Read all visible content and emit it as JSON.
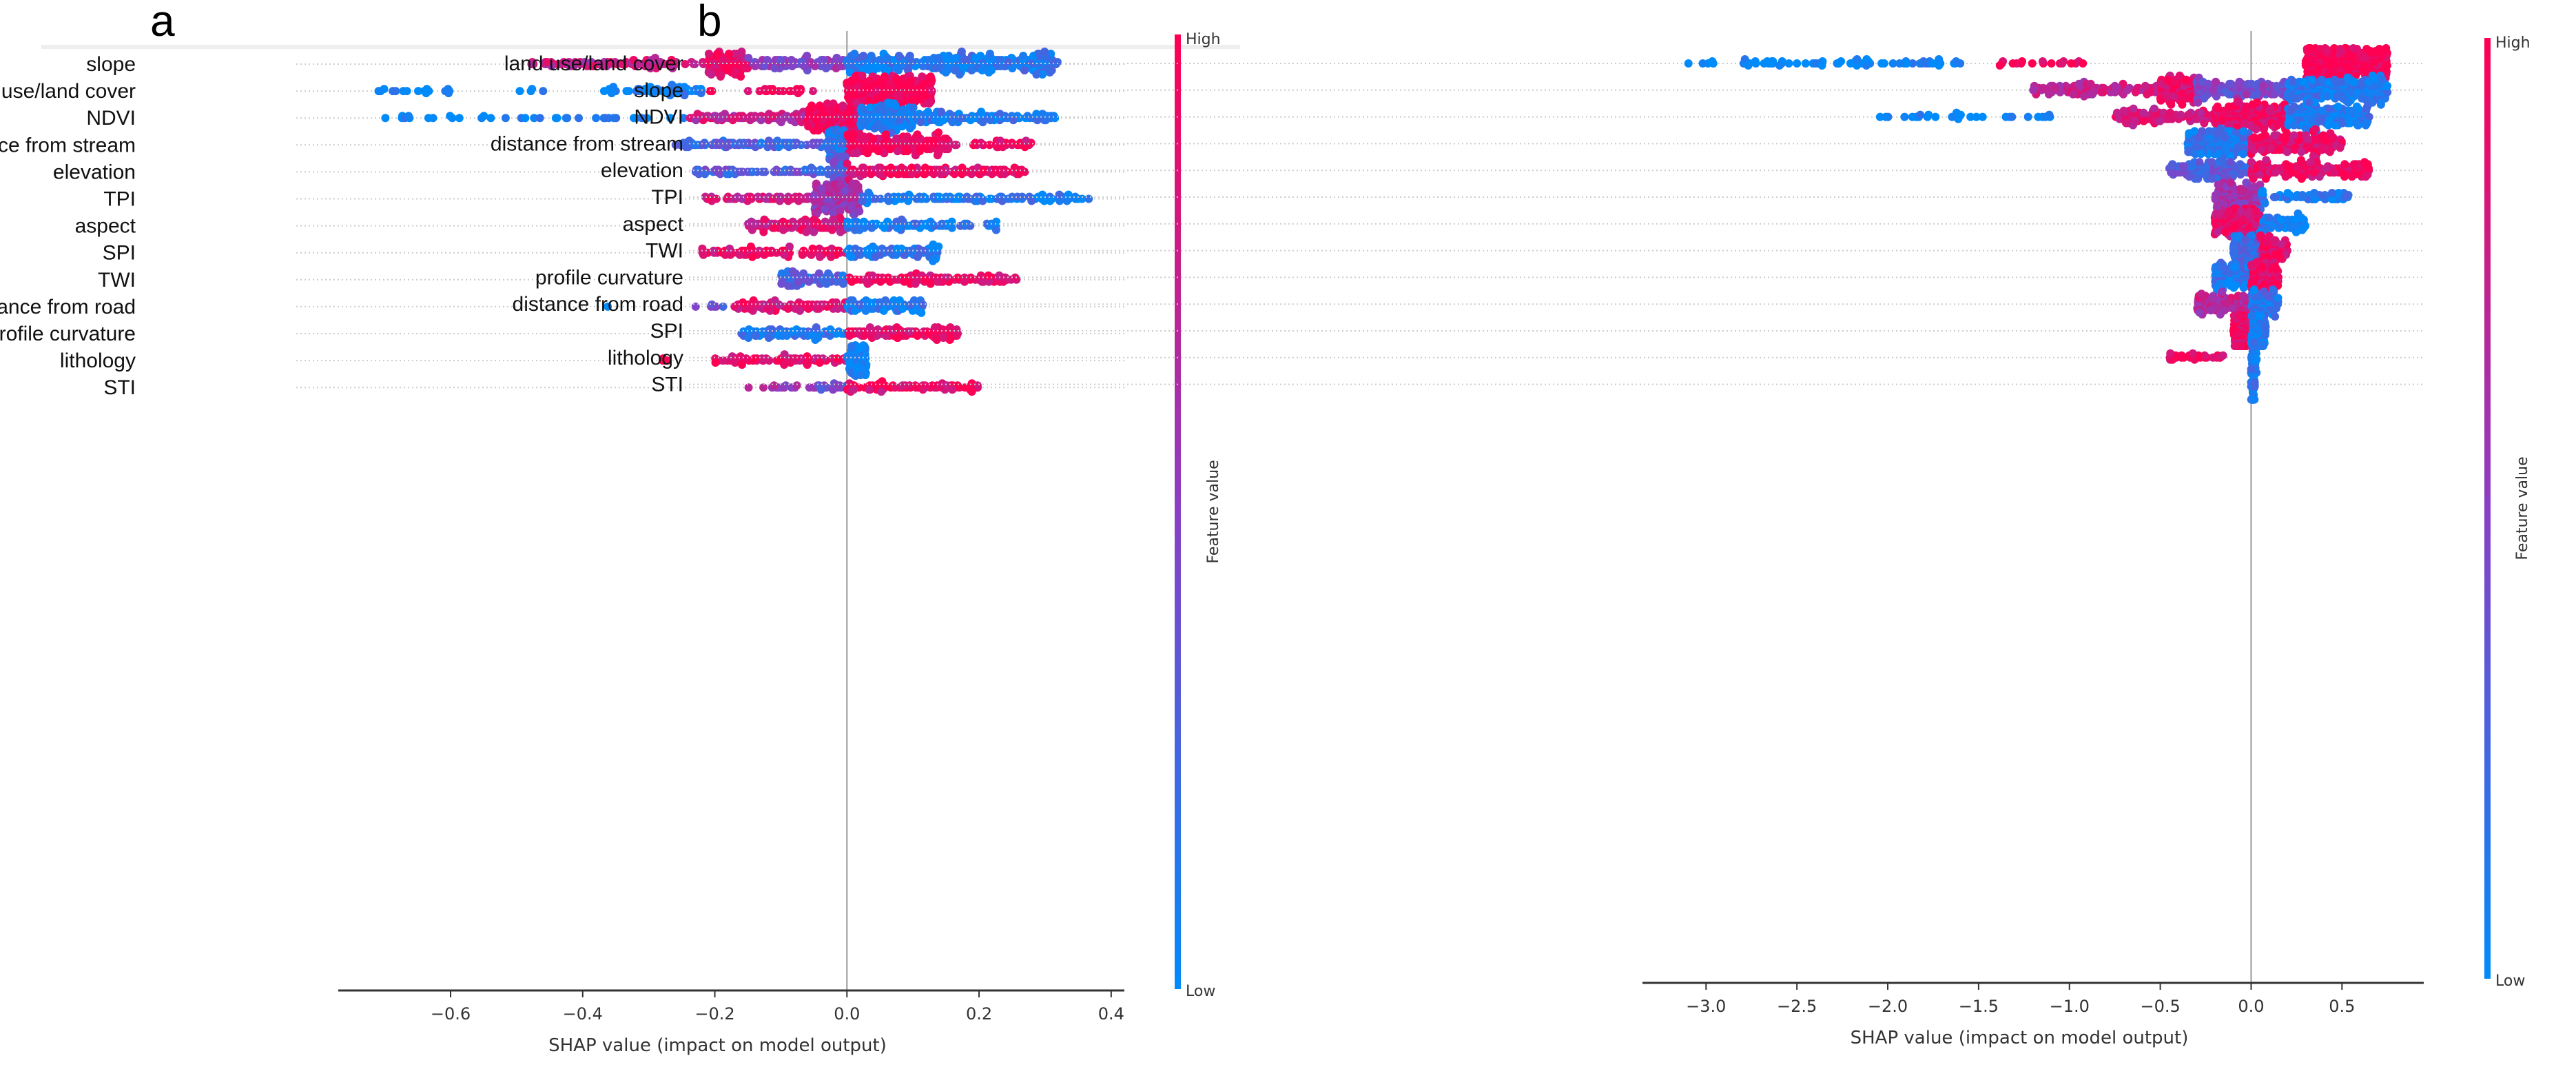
{
  "chart_data": [
    {
      "type": "scatter",
      "subtype": "shap-beeswarm",
      "panel_label": "a",
      "xlabel": "SHAP value (impact on model output)",
      "xlim": [
        -0.77,
        0.42
      ],
      "xticks": [
        -0.6,
        -0.4,
        -0.2,
        0.0,
        0.2,
        0.4
      ],
      "xtick_labels": [
        "−0.6",
        "−0.4",
        "−0.2",
        "0.0",
        "0.2",
        "0.4"
      ],
      "colorbar": {
        "label": "Feature value",
        "high": "High",
        "low": "Low"
      },
      "segments_format": "[shap_from, shap_to, feature_value_0to1, point_count]",
      "features": [
        {
          "name": "slope",
          "segments": [
            [
              -0.48,
              -0.21,
              0.75,
              90
            ],
            [
              -0.21,
              -0.15,
              0.92,
              110
            ],
            [
              -0.15,
              0.0,
              0.5,
              90
            ],
            [
              0.0,
              0.32,
              0.12,
              360
            ]
          ]
        },
        {
          "name": "land use/land cover",
          "segments": [
            [
              -0.72,
              -0.6,
              0.0,
              16
            ],
            [
              -0.51,
              -0.43,
              0.0,
              4
            ],
            [
              -0.37,
              -0.22,
              0.05,
              60
            ],
            [
              -0.21,
              -0.2,
              1.0,
              2
            ],
            [
              -0.15,
              -0.05,
              1.0,
              18
            ],
            [
              0.0,
              0.13,
              1.0,
              300
            ]
          ]
        },
        {
          "name": "NDVI",
          "segments": [
            [
              -0.7,
              -0.24,
              0.0,
              36
            ],
            [
              -0.24,
              -0.06,
              0.75,
              80
            ],
            [
              -0.06,
              0.02,
              0.95,
              170
            ],
            [
              0.02,
              0.1,
              0.08,
              160
            ],
            [
              0.1,
              0.32,
              0.1,
              110
            ]
          ]
        },
        {
          "name": "distance from stream",
          "segments": [
            [
              -0.26,
              -0.03,
              0.25,
              80
            ],
            [
              -0.03,
              0.0,
              0.15,
              80
            ],
            [
              0.0,
              0.15,
              0.95,
              190
            ],
            [
              0.15,
              0.28,
              0.9,
              40
            ]
          ]
        },
        {
          "name": "elevation",
          "segments": [
            [
              -0.23,
              -0.02,
              0.3,
              60
            ],
            [
              -0.02,
              0.0,
              0.35,
              70
            ],
            [
              0.0,
              0.27,
              0.9,
              140
            ]
          ]
        },
        {
          "name": "TPI",
          "segments": [
            [
              -0.22,
              -0.05,
              0.8,
              50
            ],
            [
              -0.05,
              0.02,
              0.6,
              170
            ],
            [
              0.02,
              0.37,
              0.1,
              110
            ]
          ]
        },
        {
          "name": "aspect",
          "segments": [
            [
              -0.15,
              0.0,
              0.85,
              110
            ],
            [
              0.0,
              0.23,
              0.1,
              90
            ]
          ]
        },
        {
          "name": "SPI",
          "segments": [
            [
              -0.22,
              0.0,
              0.88,
              90
            ],
            [
              0.0,
              0.14,
              0.12,
              100
            ]
          ]
        },
        {
          "name": "TWI",
          "segments": [
            [
              -0.1,
              0.0,
              0.25,
              80
            ],
            [
              0.0,
              0.26,
              0.92,
              110
            ]
          ]
        },
        {
          "name": "distance from road",
          "segments": [
            [
              -0.37,
              -0.36,
              0.0,
              1
            ],
            [
              -0.25,
              -0.18,
              0.4,
              6
            ],
            [
              -0.17,
              0.0,
              0.85,
              90
            ],
            [
              0.0,
              0.12,
              0.1,
              90
            ]
          ]
        },
        {
          "name": "profile curvature",
          "segments": [
            [
              -0.16,
              0.0,
              0.15,
              80
            ],
            [
              0.0,
              0.17,
              0.92,
              110
            ]
          ]
        },
        {
          "name": "lithology",
          "segments": [
            [
              -0.28,
              -0.26,
              1.0,
              4
            ],
            [
              -0.2,
              0.0,
              0.9,
              70
            ],
            [
              0.0,
              0.03,
              0.05,
              80
            ]
          ]
        },
        {
          "name": "STI",
          "segments": [
            [
              -0.15,
              -0.05,
              0.55,
              14
            ],
            [
              -0.05,
              0.0,
              0.4,
              20
            ],
            [
              0.0,
              0.2,
              0.9,
              80
            ]
          ]
        }
      ]
    },
    {
      "type": "scatter",
      "subtype": "shap-beeswarm",
      "panel_label": "b",
      "xlabel": "SHAP value (impact on model output)",
      "xlim": [
        -3.35,
        0.95
      ],
      "xticks": [
        -3.0,
        -2.5,
        -2.0,
        -1.5,
        -1.0,
        -0.5,
        0.0,
        0.5
      ],
      "xtick_labels": [
        "−3.0",
        "−2.5",
        "−2.0",
        "−1.5",
        "−1.0",
        "−0.5",
        "0.0",
        "0.5"
      ],
      "colorbar": {
        "label": "Feature value",
        "high": "High",
        "low": "Low"
      },
      "segments_format": "[shap_from, shap_to, feature_value_0to1, point_count]",
      "features": [
        {
          "name": "land use/land cover",
          "segments": [
            [
              -3.1,
              -1.6,
              0.0,
              70
            ],
            [
              -1.4,
              -0.9,
              1.0,
              18
            ],
            [
              0.3,
              0.75,
              1.0,
              330
            ]
          ]
        },
        {
          "name": "slope",
          "segments": [
            [
              -1.2,
              -0.5,
              0.75,
              120
            ],
            [
              -0.5,
              -0.3,
              0.9,
              110
            ],
            [
              -0.3,
              0.2,
              0.45,
              150
            ],
            [
              0.2,
              0.75,
              0.1,
              260
            ]
          ]
        },
        {
          "name": "NDVI",
          "segments": [
            [
              -2.05,
              -1.1,
              0.0,
              30
            ],
            [
              -0.75,
              -0.2,
              0.85,
              120
            ],
            [
              -0.2,
              0.2,
              0.92,
              220
            ],
            [
              0.2,
              0.65,
              0.1,
              200
            ]
          ]
        },
        {
          "name": "distance from stream",
          "segments": [
            [
              -0.35,
              0.0,
              0.15,
              200
            ],
            [
              0.0,
              0.5,
              0.9,
              180
            ]
          ]
        },
        {
          "name": "elevation",
          "segments": [
            [
              -0.45,
              0.0,
              0.3,
              150
            ],
            [
              0.0,
              0.65,
              0.92,
              170
            ]
          ]
        },
        {
          "name": "TPI",
          "segments": [
            [
              -0.2,
              0.05,
              0.6,
              150
            ],
            [
              0.05,
              0.55,
              0.1,
              60
            ]
          ]
        },
        {
          "name": "aspect",
          "segments": [
            [
              -0.2,
              0.05,
              0.9,
              170
            ],
            [
              0.05,
              0.3,
              0.1,
              70
            ]
          ]
        },
        {
          "name": "TWI",
          "segments": [
            [
              -0.1,
              0.05,
              0.2,
              110
            ],
            [
              0.05,
              0.2,
              0.9,
              80
            ]
          ]
        },
        {
          "name": "profile curvature",
          "segments": [
            [
              -0.2,
              0.0,
              0.15,
              110
            ],
            [
              0.0,
              0.15,
              0.92,
              110
            ]
          ]
        },
        {
          "name": "distance from road",
          "segments": [
            [
              -0.3,
              0.0,
              0.7,
              110
            ],
            [
              0.0,
              0.15,
              0.15,
              80
            ]
          ]
        },
        {
          "name": "SPI",
          "segments": [
            [
              -0.1,
              0.0,
              0.92,
              110
            ],
            [
              0.0,
              0.08,
              0.1,
              100
            ]
          ]
        },
        {
          "name": "lithology",
          "segments": [
            [
              -0.45,
              -0.15,
              0.95,
              30
            ],
            [
              0.0,
              0.03,
              0.05,
              100
            ]
          ]
        },
        {
          "name": "STI",
          "segments": [
            [
              0.0,
              0.02,
              0.08,
              60
            ]
          ]
        }
      ]
    }
  ],
  "colors": {
    "low": "#008bfb",
    "high": "#ff0052"
  }
}
